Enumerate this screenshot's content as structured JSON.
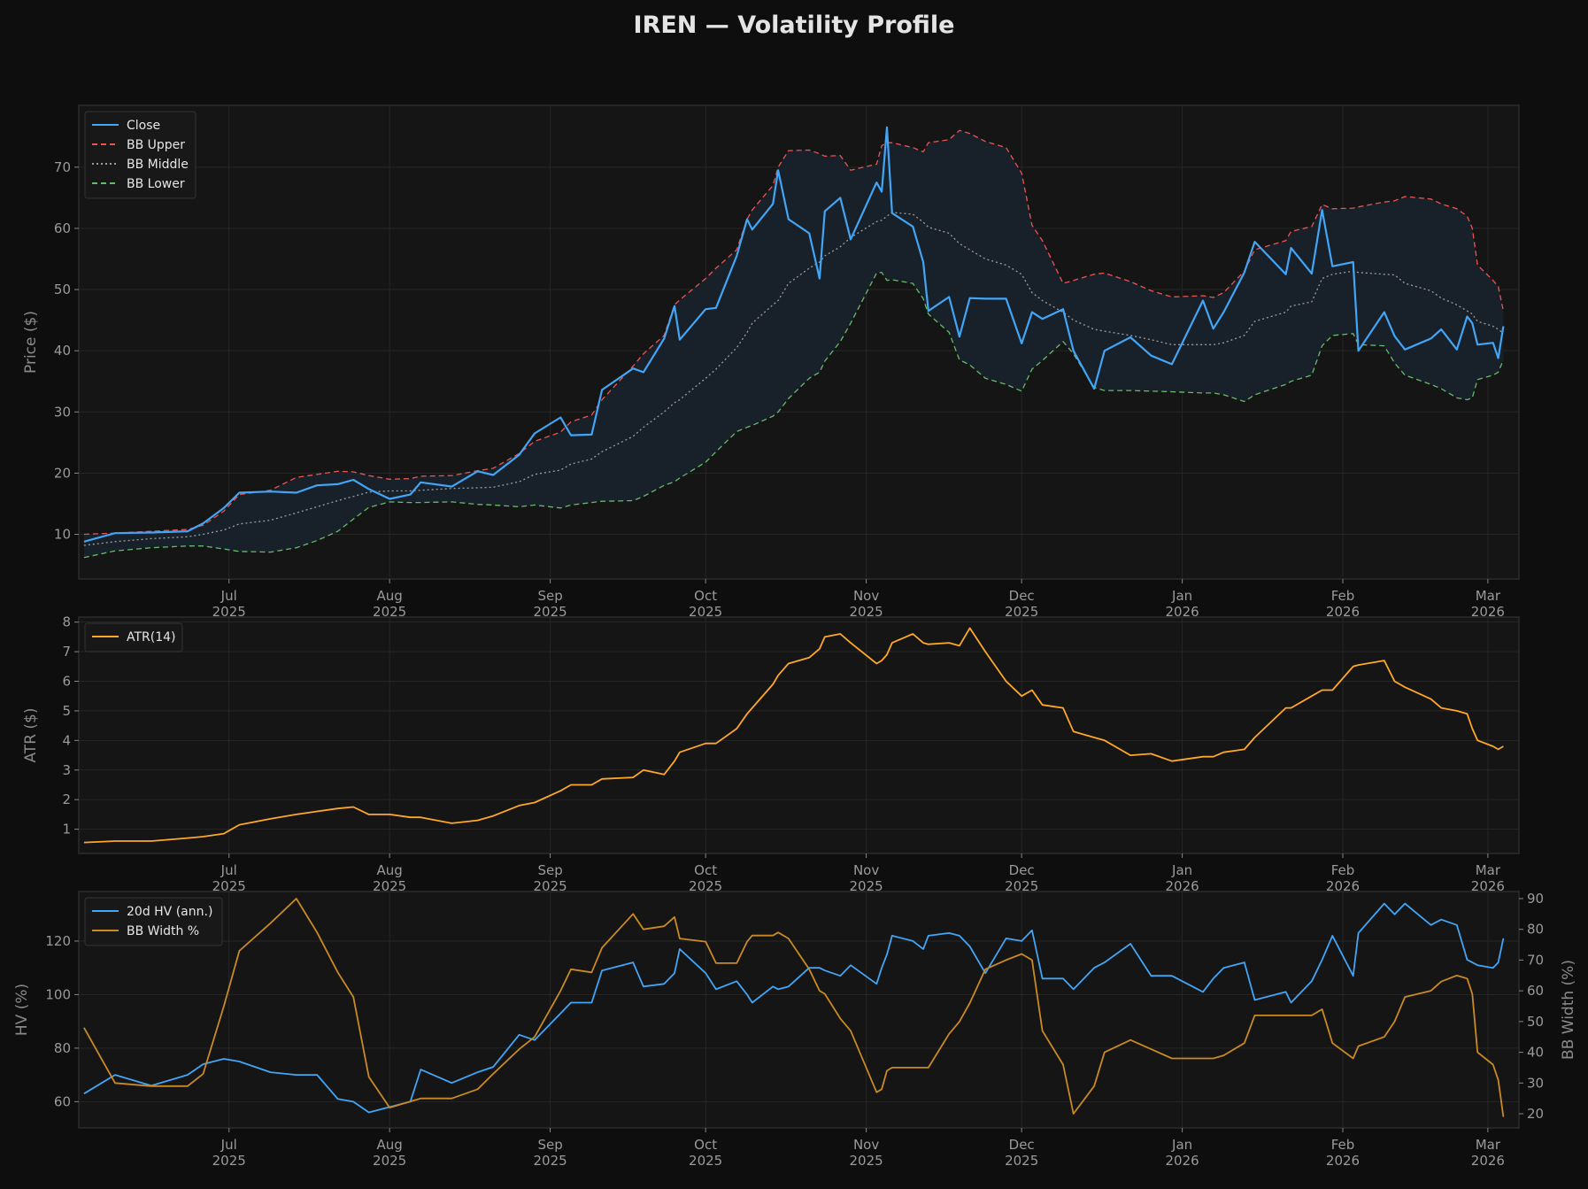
{
  "chart_data": [
    {
      "type": "line",
      "title": "IREN — Volatility Profile",
      "ylabel": "Price ($)",
      "xlim": [
        "2025-06-02",
        "2026-03-07"
      ],
      "ylim": [
        2.7,
        80.1
      ],
      "yticks": [
        10,
        20,
        30,
        40,
        50,
        60,
        70
      ],
      "xticks": [
        [
          "2025-07-01",
          "Jul",
          "2025"
        ],
        [
          "2025-08-01",
          "Aug",
          "2025"
        ],
        [
          "2025-09-01",
          "Sep",
          "2025"
        ],
        [
          "2025-10-01",
          "Oct",
          "2025"
        ],
        [
          "2025-11-01",
          "Nov",
          "2025"
        ],
        [
          "2025-12-01",
          "Dec",
          "2025"
        ],
        [
          "2026-01-01",
          "Jan",
          "2026"
        ],
        [
          "2026-02-01",
          "Feb",
          "2026"
        ],
        [
          "2026-03-01",
          "Mar",
          "2026"
        ]
      ],
      "grid": true,
      "legend": "top-left",
      "band_fill": "between BB Upper and BB Lower",
      "series": [
        {
          "name": "Close",
          "color": "#42a5f5",
          "style": "solid",
          "values": [
            8.8,
            10.2,
            10.3,
            10.5,
            11.8,
            14.3,
            16.8,
            17,
            16.8,
            18,
            18.2,
            18.9,
            17.4,
            15.8,
            16.5,
            18.5,
            17.8,
            20.3,
            19.7,
            23,
            26.5,
            29.1,
            26.2,
            26.3,
            33.6,
            37.1,
            36.5,
            42,
            47.3,
            41.8,
            46.8,
            47,
            55.5,
            61.5,
            59.8,
            64,
            69.5,
            61.5,
            59.2,
            51.8,
            62.8,
            65,
            58.2,
            67.5,
            66,
            76.5,
            62.5,
            60.3,
            54.5,
            46.5,
            48.8,
            42.3,
            48.6,
            48.5,
            48.5,
            41.2,
            46.3,
            45.2,
            46.8,
            40,
            33.8,
            40,
            42.2,
            39.2,
            37.8,
            48.2,
            43.6,
            46.3,
            52.8,
            57.8,
            52.5,
            56.8,
            52.6,
            63,
            53.8,
            54.5,
            40,
            46.3,
            42.4,
            40.2,
            42,
            43.5,
            40.2,
            45.6,
            44.5,
            41,
            41.3,
            38.8,
            44
          ]
        },
        {
          "name": "BB Upper",
          "color": "#ef5350",
          "style": "dashed",
          "values": [
            10,
            10.2,
            10.5,
            10.8,
            11.5,
            13.8,
            16.5,
            17.2,
            19.3,
            19.8,
            20.3,
            20.2,
            19.6,
            19,
            19.1,
            19.5,
            19.6,
            20.4,
            20.8,
            23.2,
            25.2,
            26.7,
            28.4,
            29.5,
            32,
            37.5,
            39.5,
            42.5,
            47.5,
            48.3,
            51.8,
            53.5,
            56.5,
            61.5,
            63,
            67,
            70,
            72.7,
            72.8,
            72.2,
            71.8,
            71.9,
            69.5,
            70.5,
            73.5,
            74,
            74,
            73.2,
            72.5,
            74,
            74.5,
            76,
            75.5,
            74.2,
            73.2,
            69,
            60.5,
            58,
            51,
            51.5,
            52.5,
            52.7,
            51.3,
            49.8,
            48.8,
            49,
            48.7,
            49.5,
            53,
            56.5,
            58,
            59.5,
            60.3,
            63.9,
            63.2,
            63.3,
            63.5,
            64.3,
            64.5,
            65.2,
            64.8,
            64,
            63.2,
            62,
            60,
            54,
            51.5,
            50.5,
            46.5
          ]
        },
        {
          "name": "BB Middle",
          "color": "#9e9e9e",
          "style": "dotted",
          "values": [
            8.2,
            8.8,
            9.3,
            9.6,
            10,
            10.7,
            11.7,
            12.3,
            13.5,
            14.5,
            15.5,
            16.2,
            16.9,
            17.1,
            17.1,
            17.2,
            17.5,
            17.6,
            17.7,
            18.6,
            19.8,
            20.5,
            21.5,
            22.3,
            23.5,
            26,
            27.5,
            30,
            31.5,
            32,
            35.5,
            37,
            40.5,
            43,
            44.5,
            47.5,
            48.2,
            51,
            53.5,
            54.5,
            55.5,
            57,
            58.5,
            61.1,
            61.3,
            62,
            62.6,
            62.3,
            61,
            60.2,
            59.2,
            57.5,
            56.5,
            55,
            54,
            52.5,
            49.5,
            48.2,
            46.3,
            45,
            43.5,
            43.2,
            42.5,
            41.8,
            41,
            41,
            41,
            41.3,
            42.5,
            44.8,
            46.3,
            47.3,
            48,
            51.8,
            52.5,
            53,
            52.8,
            52.5,
            52.4,
            51,
            49.8,
            48.6,
            47.5,
            46.5,
            46,
            44.8,
            44,
            43.5,
            42.8
          ]
        },
        {
          "name": "BB Lower",
          "color": "#66bb6a",
          "style": "dashed",
          "values": [
            6.2,
            7.3,
            7.8,
            8.1,
            8.1,
            7.6,
            7.2,
            7.1,
            7.8,
            9,
            10.5,
            12.5,
            14.4,
            15.3,
            15.2,
            15.2,
            15.3,
            14.9,
            14.8,
            14.5,
            14.8,
            14.3,
            14.8,
            15.2,
            15.4,
            15.5,
            16.2,
            18,
            18.6,
            19.2,
            21.8,
            23.5,
            26.8,
            27.5,
            27.8,
            29.3,
            30,
            32.2,
            35.5,
            36.5,
            38.3,
            41.5,
            44.5,
            52.7,
            52.8,
            51.5,
            51.6,
            51,
            48.5,
            46,
            43,
            38.5,
            37.7,
            35.5,
            34.5,
            33.4,
            37,
            38.4,
            41.5,
            39.5,
            34,
            33.5,
            33.5,
            33.4,
            33.3,
            33.1,
            33.1,
            32.8,
            31.7,
            32.8,
            34.5,
            35,
            36,
            40.8,
            42.5,
            42.8,
            41,
            40.8,
            38,
            36,
            34.5,
            33.8,
            32.3,
            32,
            32.3,
            35.3,
            36,
            36.5,
            38.5
          ]
        }
      ]
    },
    {
      "type": "line",
      "ylabel": "ATR ($)",
      "ylim": [
        0.18,
        8.17
      ],
      "yticks": [
        1,
        2,
        3,
        4,
        5,
        6,
        7,
        8
      ],
      "grid": true,
      "legend": "top-left",
      "series": [
        {
          "name": "ATR(14)",
          "color": "#ffa726",
          "values": [
            0.55,
            0.6,
            0.6,
            0.7,
            0.75,
            0.85,
            1.15,
            1.35,
            1.5,
            1.6,
            1.7,
            1.75,
            1.5,
            1.5,
            1.4,
            1.4,
            1.2,
            1.3,
            1.45,
            1.8,
            1.9,
            2.3,
            2.5,
            2.5,
            2.7,
            2.75,
            3.0,
            2.85,
            3.3,
            3.6,
            3.9,
            3.9,
            4.4,
            4.9,
            5.1,
            5.9,
            6.2,
            6.6,
            6.8,
            7.1,
            7.5,
            7.6,
            7.3,
            6.6,
            6.7,
            6.9,
            7.3,
            7.6,
            7.3,
            7.25,
            7.3,
            7.2,
            7.8,
            7.0,
            6.0,
            5.5,
            5.7,
            5.2,
            5.1,
            4.3,
            4.1,
            4.0,
            3.5,
            3.55,
            3.3,
            3.45,
            3.45,
            3.6,
            3.7,
            4.1,
            5.1,
            5.1,
            5.5,
            5.7,
            5.7,
            6.5,
            6.55,
            6.7,
            6.0,
            5.8,
            5.4,
            5.1,
            5.0,
            4.9,
            4.4,
            4.0,
            3.8,
            3.7,
            3.8
          ]
        }
      ]
    },
    {
      "type": "line",
      "ylabel": "HV (%)",
      "ylabel_right": "BB Width (%)",
      "ylim": [
        50.2,
        138.5
      ],
      "ylim_right": [
        15.4,
        92.3
      ],
      "yticks": [
        60,
        80,
        100,
        120
      ],
      "yticks_right": [
        20,
        30,
        40,
        50,
        60,
        70,
        80,
        90
      ],
      "grid": true,
      "legend": "top-left",
      "series": [
        {
          "name": "20d HV (ann.)",
          "color": "#42a5f5",
          "axis": "left",
          "values": [
            63,
            70,
            66,
            70,
            74,
            76,
            75,
            71,
            70,
            70,
            61,
            60,
            56,
            58,
            60,
            72,
            67,
            71,
            73,
            85,
            83,
            93,
            97,
            97,
            109,
            112,
            103,
            104,
            108,
            117,
            108,
            102,
            105,
            100,
            97,
            103,
            102,
            103,
            110,
            110,
            109,
            107,
            111,
            104,
            110,
            115,
            122,
            120,
            117,
            122,
            123,
            122,
            118,
            108,
            121,
            120,
            124,
            106,
            106,
            102,
            110,
            112,
            119,
            107,
            107,
            101,
            106,
            110,
            112,
            98,
            101,
            97,
            105,
            113,
            122,
            107,
            123,
            134,
            130,
            134,
            126,
            128,
            126,
            113,
            112,
            111,
            110,
            112,
            121
          ]
        },
        {
          "name": "BB Width %",
          "color": "#c98a24",
          "axis": "right",
          "values": [
            48,
            30,
            29,
            29,
            33,
            55,
            73,
            82,
            90,
            79,
            66,
            58,
            32,
            22,
            24,
            25,
            25,
            28,
            33,
            41,
            45,
            60,
            67,
            66,
            74,
            85,
            80,
            81,
            84,
            77,
            76,
            69,
            69,
            76,
            78,
            78,
            79,
            77,
            67,
            60,
            59,
            51,
            47,
            27,
            28,
            34,
            35,
            35,
            35,
            35,
            46,
            50,
            56,
            67,
            70,
            72,
            70,
            47,
            36,
            20,
            29,
            40,
            44,
            41,
            38,
            38,
            38,
            39,
            43,
            52,
            52,
            52,
            52,
            54,
            43,
            38,
            42,
            45,
            50,
            58,
            60,
            63,
            65,
            64,
            59,
            40,
            36,
            31,
            19
          ]
        }
      ]
    }
  ],
  "dates": [
    "2025-06-03",
    "2025-06-09",
    "2025-06-16",
    "2025-06-23",
    "2025-06-26",
    "2025-06-30",
    "2025-07-03",
    "2025-07-09",
    "2025-07-14",
    "2025-07-18",
    "2025-07-22",
    "2025-07-25",
    "2025-07-28",
    "2025-08-01",
    "2025-08-05",
    "2025-08-07",
    "2025-08-13",
    "2025-08-18",
    "2025-08-21",
    "2025-08-26",
    "2025-08-29",
    "2025-09-03",
    "2025-09-05",
    "2025-09-09",
    "2025-09-11",
    "2025-09-17",
    "2025-09-19",
    "2025-09-23",
    "2025-09-25",
    "2025-09-26",
    "2025-10-01",
    "2025-10-03",
    "2025-10-07",
    "2025-10-09",
    "2025-10-10",
    "2025-10-14",
    "2025-10-15",
    "2025-10-17",
    "2025-10-21",
    "2025-10-23",
    "2025-10-24",
    "2025-10-27",
    "2025-10-29",
    "2025-11-03",
    "2025-11-04",
    "2025-11-05",
    "2025-11-06",
    "2025-11-10",
    "2025-11-12",
    "2025-11-13",
    "2025-11-17",
    "2025-11-19",
    "2025-11-21",
    "2025-11-24",
    "2025-11-28",
    "2025-12-01",
    "2025-12-03",
    "2025-12-05",
    "2025-12-09",
    "2025-12-11",
    "2025-12-15",
    "2025-12-17",
    "2025-12-22",
    "2025-12-26",
    "2025-12-30",
    "2026-01-05",
    "2026-01-07",
    "2026-01-09",
    "2026-01-13",
    "2026-01-15",
    "2026-01-21",
    "2026-01-22",
    "2026-01-26",
    "2026-01-28",
    "2026-01-30",
    "2026-02-03",
    "2026-02-04",
    "2026-02-09",
    "2026-02-11",
    "2026-02-13",
    "2026-02-18",
    "2026-02-20",
    "2026-02-23",
    "2026-02-25",
    "2026-02-26",
    "2026-02-27",
    "2026-03-02",
    "2026-03-03",
    "2026-03-04"
  ],
  "colors": {
    "background": "#0e0e0e",
    "axes_bg": "#151515",
    "grid": "#262626",
    "band": "#18212b"
  }
}
